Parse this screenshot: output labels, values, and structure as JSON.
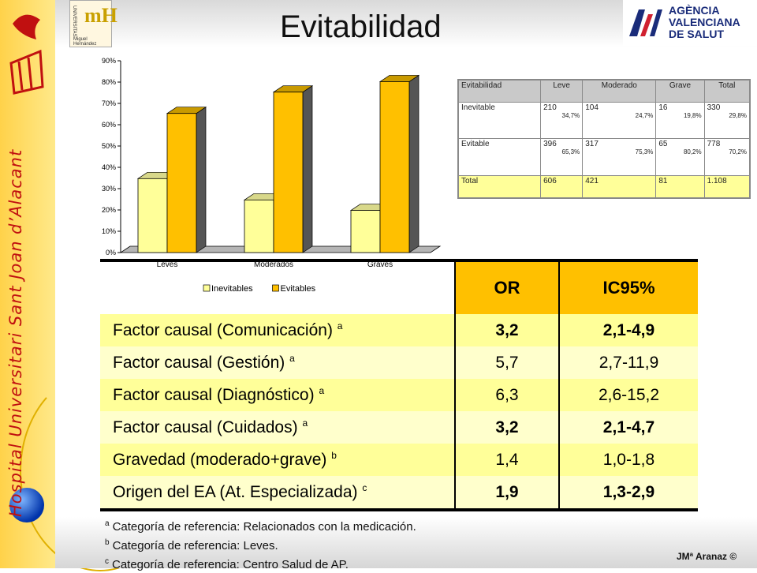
{
  "sidebar": {
    "text": "Hospital Universitari Sant Joan d’Alacant"
  },
  "header": {
    "title": "Evitabilidad",
    "logo_left_lines": [
      "UNIVERSITAS",
      "mH",
      "Miguel Hernández"
    ],
    "logo_right_lines": [
      "AGÈNCIA",
      "VALENCIANA",
      "DE SALUT"
    ]
  },
  "colors": {
    "inevitables": "#ffff99",
    "evitables": "#ffc000",
    "header_bg": "#ffc000",
    "row_yellow": "#ffff99"
  },
  "chart_data": {
    "type": "bar",
    "categories": [
      "Leves",
      "Moderados",
      "Graves"
    ],
    "series": [
      {
        "name": "Inevitables",
        "values": [
          34.7,
          24.7,
          19.8
        ]
      },
      {
        "name": "Evitables",
        "values": [
          65.3,
          75.3,
          80.2
        ]
      }
    ],
    "yticks": [
      "0%",
      "10%",
      "20%",
      "30%",
      "40%",
      "50%",
      "60%",
      "70%",
      "80%",
      "90%"
    ],
    "ylim": [
      0,
      90
    ],
    "legend": "bottom",
    "grid": false
  },
  "mini_table": {
    "headers": [
      "Evitabilidad",
      "Leve",
      "Moderado",
      "Grave",
      "Total"
    ],
    "rows": [
      {
        "label": "Inevitable",
        "cells": [
          [
            "210",
            "34,7%"
          ],
          [
            "104",
            "24,7%"
          ],
          [
            "16",
            "19,8%"
          ],
          [
            "330",
            "29,8%"
          ]
        ]
      },
      {
        "label": "Evitable",
        "cells": [
          [
            "396",
            "65,3%"
          ],
          [
            "317",
            "75,3%"
          ],
          [
            "65",
            "80,2%"
          ],
          [
            "778",
            "70,2%"
          ]
        ]
      },
      {
        "label": "Total",
        "cells": [
          [
            "606",
            ""
          ],
          [
            "421",
            ""
          ],
          [
            "81",
            ""
          ],
          [
            "1.108",
            ""
          ]
        ]
      }
    ]
  },
  "or_table": {
    "headers": [
      "OR",
      "IC95%"
    ],
    "rows": [
      {
        "label": "Factor causal (Comunicación)",
        "sup": "a",
        "or": "3,2",
        "ci": "2,1-4,9"
      },
      {
        "label": "Factor causal (Gestión)",
        "sup": "a",
        "or": "5,7",
        "ci": "2,7-11,9"
      },
      {
        "label": "Factor causal (Diagnóstico)",
        "sup": "a",
        "or": "6,3",
        "ci": "2,6-15,2"
      },
      {
        "label": "Factor causal (Cuidados)",
        "sup": "a",
        "or": "3,2",
        "ci": "2,1-4,7"
      },
      {
        "label": "Gravedad (moderado+grave)",
        "sup": "b",
        "or": "1,4",
        "ci": "1,0-1,8"
      },
      {
        "label": "Origen del EA (At. Especializada)",
        "sup": "c",
        "or": "1,9",
        "ci": "1,3-2,9"
      }
    ]
  },
  "notes": [
    {
      "sup": "a",
      "text": "Categoría de referencia: Relacionados con la medicación."
    },
    {
      "sup": "b",
      "text": "Categoría de referencia: Leves."
    },
    {
      "sup": "c",
      "text": "Categoría de referencia: Centro Salud de AP."
    }
  ],
  "author": "JMª Aranaz ©"
}
